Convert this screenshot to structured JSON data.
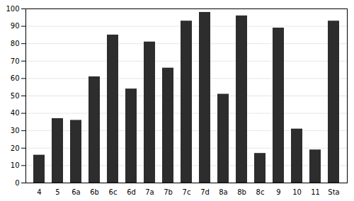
{
  "chart_data": {
    "type": "bar",
    "categories": [
      "4",
      "5",
      "6a",
      "6b",
      "6c",
      "6d",
      "7a",
      "7b",
      "7c",
      "7d",
      "8a",
      "8b",
      "8c",
      "9",
      "10",
      "11",
      "Sta"
    ],
    "values": [
      16,
      37,
      36,
      61,
      85,
      54,
      81,
      66,
      93,
      98,
      51,
      96,
      17,
      89,
      31,
      19,
      93
    ],
    "color": "#2d2d2d",
    "ylim": [
      0,
      100
    ],
    "yticks": [
      0,
      10,
      20,
      30,
      40,
      50,
      60,
      70,
      80,
      90,
      100
    ],
    "grid": true
  }
}
